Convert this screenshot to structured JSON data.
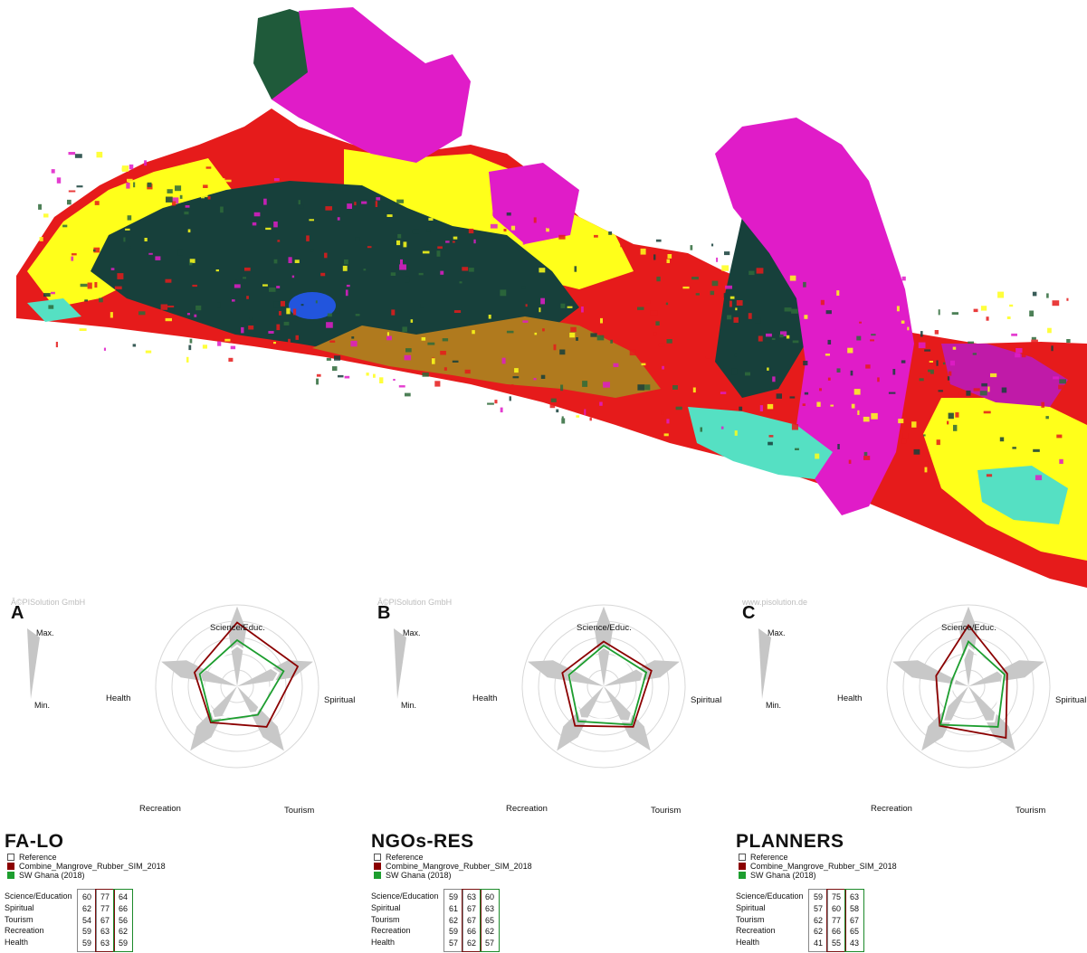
{
  "colors": {
    "reference": "#ffffff",
    "combine": "#8b0000",
    "sw_ghana": "#1d9e2f",
    "spoke": "#c8c8c8",
    "ring": "#d8d8d8",
    "map_forest": "#17403b",
    "map_yellow": "#ffff1a",
    "map_magenta": "#e01cc8",
    "map_red": "#e61b1b",
    "map_brown": "#b07a1e",
    "map_cyan": "#55e0c3",
    "map_blue": "#2255dd"
  },
  "legend": {
    "reference": "Reference",
    "combine": "Combine_Mangrove_Rubber_SIM_2018",
    "sw_ghana": "SW Ghana (2018)"
  },
  "scale": {
    "max": "Max.",
    "min": "Min."
  },
  "panels": [
    {
      "label": "A",
      "watermark": "Â©PISolution GmbH",
      "title": "FA-LO"
    },
    {
      "label": "B",
      "watermark": "Â©PISolution GmbH",
      "title": "NGOs-RES"
    },
    {
      "label": "C",
      "watermark": "www.pisolution.de",
      "title": "PLANNERS"
    }
  ],
  "chart_data": [
    {
      "type": "radar",
      "title": "FA-LO",
      "axes": [
        "Science/Educ.",
        "Spiritual",
        "Tourism",
        "Recreation",
        "Health"
      ],
      "rows": [
        "Science/Education",
        "Spiritual",
        "Tourism",
        "Recreation",
        "Health"
      ],
      "series": [
        {
          "name": "Reference",
          "values": [
            60,
            62,
            54,
            59,
            59
          ]
        },
        {
          "name": "Combine_Mangrove_Rubber_SIM_2018",
          "values": [
            77,
            77,
            67,
            63,
            63
          ]
        },
        {
          "name": "SW Ghana (2018)",
          "values": [
            64,
            66,
            56,
            62,
            59
          ]
        }
      ]
    },
    {
      "type": "radar",
      "title": "NGOs-RES",
      "axes": [
        "Science/Educ.",
        "Spiritual",
        "Tourism",
        "Recreation",
        "Health"
      ],
      "rows": [
        "Science/Education",
        "Spiritual",
        "Tourism",
        "Recreation",
        "Health"
      ],
      "series": [
        {
          "name": "Reference",
          "values": [
            59,
            61,
            62,
            59,
            57
          ]
        },
        {
          "name": "Combine_Mangrove_Rubber_SIM_2018",
          "values": [
            63,
            67,
            67,
            66,
            62
          ]
        },
        {
          "name": "SW Ghana (2018)",
          "values": [
            60,
            63,
            65,
            62,
            57
          ]
        }
      ]
    },
    {
      "type": "radar",
      "title": "PLANNERS",
      "axes": [
        "Science/Educ.",
        "Spiritual",
        "Tourism",
        "Recreation",
        "Health"
      ],
      "rows": [
        "Science/Education",
        "Spiritual",
        "Tourism",
        "Recreation",
        "Health"
      ],
      "series": [
        {
          "name": "Reference",
          "values": [
            59,
            57,
            62,
            62,
            41
          ]
        },
        {
          "name": "Combine_Mangrove_Rubber_SIM_2018",
          "values": [
            75,
            60,
            77,
            66,
            55
          ]
        },
        {
          "name": "SW Ghana (2018)",
          "values": [
            63,
            58,
            67,
            65,
            43
          ]
        }
      ]
    }
  ]
}
